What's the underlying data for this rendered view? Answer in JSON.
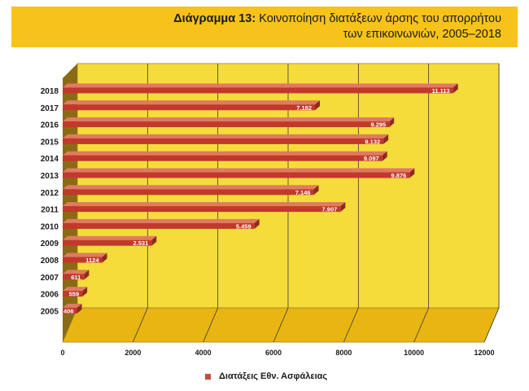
{
  "header": {
    "title_prefix": "Διάγραμμα 13:",
    "title_line1": "Κοινοποίηση διατάξεων άρσης του απορρήτου",
    "title_line2": "των επικοινωνιών, 2005–2018"
  },
  "colors": {
    "header_bg": "#f7c31a",
    "plot_bg": "#f5dc3a",
    "plot_floor": "#e8b512",
    "plot_side": "#8a6b14",
    "bar_fill": "#c0392b",
    "bar_highlight": "#e07a62",
    "grid": "#3a3a3a"
  },
  "chart_data": {
    "type": "bar",
    "orientation": "horizontal",
    "categories": [
      "2018",
      "2017",
      "2016",
      "2015",
      "2014",
      "2013",
      "2012",
      "2011",
      "2010",
      "2009",
      "2008",
      "2007",
      "2006",
      "2005"
    ],
    "values": [
      11113,
      7182,
      9295,
      9132,
      9097,
      9876,
      7146,
      7907,
      5459,
      2531,
      1124,
      611,
      559,
      406
    ],
    "data_labels": [
      "11.113",
      "7.182",
      "9.295",
      "9.132",
      "9.097",
      "9.876",
      "7.146",
      "7.907",
      "5.459",
      "2.531",
      "1124",
      "611",
      "559",
      "406"
    ],
    "x_ticks": [
      0,
      2000,
      4000,
      6000,
      8000,
      10000,
      12000
    ],
    "x_tick_labels": [
      "0",
      "2000",
      "4000",
      "6000",
      "8000",
      "10000",
      "12000"
    ],
    "xlim": [
      0,
      12000
    ],
    "series": [
      {
        "name": "Διατάξεις  Εθν. Ασφάλειας",
        "values": [
          11113,
          7182,
          9295,
          9132,
          9097,
          9876,
          7146,
          7907,
          5459,
          2531,
          1124,
          611,
          559,
          406
        ]
      }
    ],
    "grid": true,
    "legend_position": "bottom"
  },
  "legend": {
    "label": "Διατάξεις  Εθν. Ασφάλειας"
  }
}
